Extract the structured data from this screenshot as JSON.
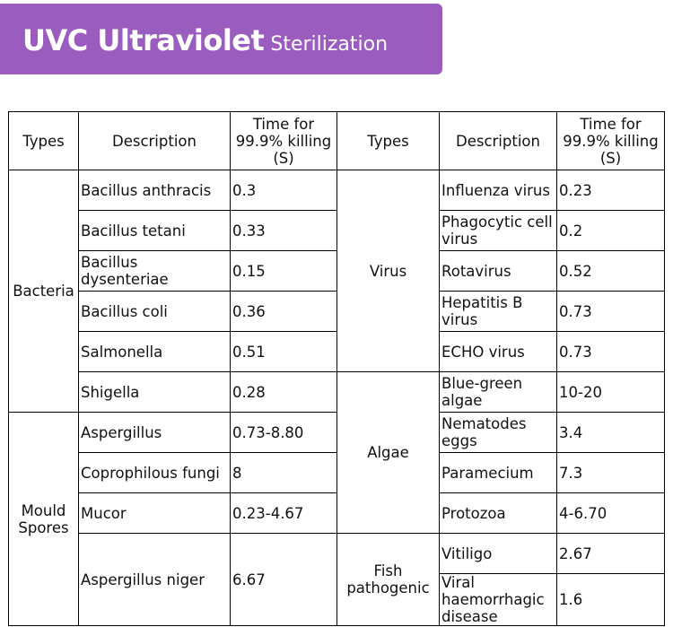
{
  "banner": {
    "title": "UVC Ultraviolet",
    "subtitle": "Sterilization"
  },
  "table": {
    "headers": {
      "types": "Types",
      "description": "Description",
      "time": "Time for 99.9% killing (S)"
    },
    "left": {
      "group1": "Bacteria",
      "group2": "Mould Spores",
      "rows": [
        {
          "desc": "Bacillus anthracis",
          "time": "0.3"
        },
        {
          "desc": "Bacillus tetani",
          "time": "0.33"
        },
        {
          "desc": "Bacillus dysenteriae",
          "time": "0.15"
        },
        {
          "desc": "Bacillus coli",
          "time": "0.36"
        },
        {
          "desc": "Salmonella",
          "time": "0.51"
        },
        {
          "desc": "Shigella",
          "time": "0.28"
        },
        {
          "desc": "Aspergillus",
          "time": "0.73-8.80"
        },
        {
          "desc": "Coprophilous fungi",
          "time": "8"
        },
        {
          "desc": "Mucor",
          "time": "0.23-4.67"
        },
        {
          "desc": "Aspergillus niger",
          "time": "6.67"
        }
      ]
    },
    "right": {
      "group1": "Virus",
      "group2": "Algae",
      "group3": "Fish pathogenic",
      "rows": [
        {
          "desc": "Influenza virus",
          "time": "0.23"
        },
        {
          "desc": "Phagocytic cell virus",
          "time": "0.2"
        },
        {
          "desc": "Rotavirus",
          "time": "0.52"
        },
        {
          "desc": "Hepatitis B virus",
          "time": "0.73"
        },
        {
          "desc": "ECHO virus",
          "time": "0.73"
        },
        {
          "desc": "Blue-green algae",
          "time": "10-20"
        },
        {
          "desc": "Nematodes eggs",
          "time": "3.4"
        },
        {
          "desc": "Paramecium",
          "time": "7.3"
        },
        {
          "desc": "Protozoa",
          "time": "4-6.70"
        },
        {
          "desc": "Vitiligo",
          "time": "2.67"
        },
        {
          "desc": "Viral haemorrhagic disease",
          "time": "1.6"
        }
      ]
    }
  }
}
